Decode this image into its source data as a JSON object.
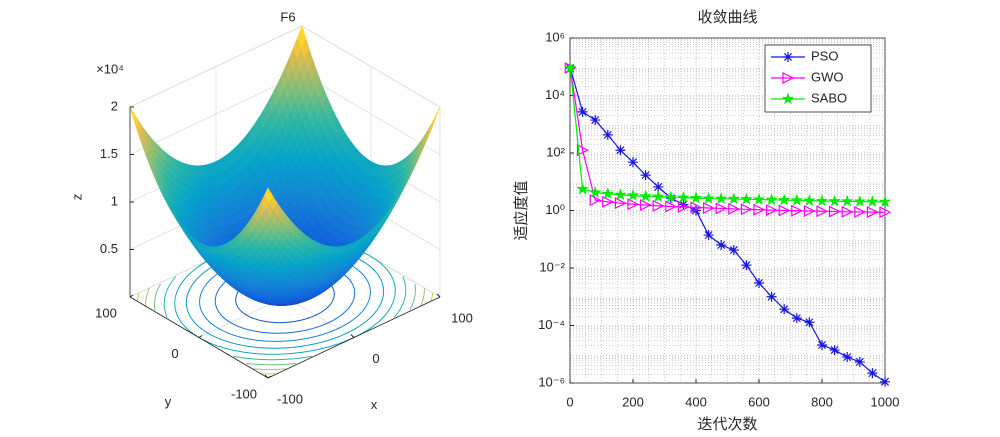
{
  "chart_data": [
    {
      "type": "surface",
      "title": "F6",
      "xlabel": "x",
      "ylabel": "y",
      "zlabel": "z",
      "xlim": [
        -100,
        100
      ],
      "ylim": [
        -100,
        100
      ],
      "zlim": [
        0,
        20000
      ],
      "xticks": [
        -100,
        0,
        100
      ],
      "yticks": [
        -100,
        0,
        100
      ],
      "zticks": [
        {
          "value": 5000,
          "label": "0.5"
        },
        {
          "value": 10000,
          "label": "1"
        },
        {
          "value": 15000,
          "label": "1.5"
        },
        {
          "value": 20000,
          "label": "2"
        }
      ],
      "z_multiplier": "×10⁴",
      "grid": true
    },
    {
      "type": "line",
      "title": "收敛曲线",
      "xlabel": "迭代次数",
      "ylabel": "适应度值",
      "x": [
        1,
        40,
        80,
        120,
        160,
        200,
        240,
        280,
        320,
        360,
        400,
        440,
        480,
        520,
        560,
        600,
        640,
        680,
        720,
        760,
        800,
        840,
        880,
        920,
        960,
        1000
      ],
      "series": [
        {
          "name": "PSO",
          "color": "#1414e6",
          "marker": "asterisk",
          "values": [
            90000,
            2700,
            1400,
            430,
            125,
            48,
            17,
            6.6,
            2.7,
            1.6,
            1.0,
            0.14,
            0.063,
            0.042,
            0.0126,
            0.003,
            0.001,
            0.00037,
            0.00018,
            0.00013,
            2.1e-05,
            1.4e-05,
            8e-06,
            5.4e-06,
            2.2e-06,
            1.1e-06
          ]
        },
        {
          "name": "GWO",
          "color": "#ff00ff",
          "marker": "triangle-right",
          "values": [
            90000,
            126,
            2.3,
            2.0,
            1.8,
            1.65,
            1.55,
            1.45,
            1.38,
            1.32,
            1.27,
            1.22,
            1.18,
            1.14,
            1.1,
            1.06,
            1.03,
            1.0,
            0.98,
            0.96,
            0.94,
            0.92,
            0.9,
            0.89,
            0.88,
            0.87
          ]
        },
        {
          "name": "SABO",
          "color": "#00ee00",
          "marker": "pentagram",
          "values": [
            90000,
            5.5,
            4.2,
            3.8,
            3.5,
            3.3,
            3.1,
            3.0,
            2.9,
            2.8,
            2.7,
            2.6,
            2.55,
            2.5,
            2.45,
            2.4,
            2.35,
            2.3,
            2.25,
            2.2,
            2.15,
            2.1,
            2.08,
            2.05,
            2.02,
            2.0
          ]
        }
      ],
      "xlim": [
        0,
        1000
      ],
      "xticks": [
        0,
        200,
        400,
        600,
        800,
        1000
      ],
      "ylim": [
        1e-06,
        1000000
      ],
      "log_y": true,
      "yticks": [
        {
          "value": 1e-06,
          "label": "10⁻⁶"
        },
        {
          "value": 0.0001,
          "label": "10⁻⁴"
        },
        {
          "value": 0.01,
          "label": "10⁻²"
        },
        {
          "value": 1,
          "label": "10⁰"
        },
        {
          "value": 100,
          "label": "10²"
        },
        {
          "value": 10000,
          "label": "10⁴"
        },
        {
          "value": 1000000,
          "label": "10⁶"
        }
      ],
      "grid": true,
      "minor_grid": true,
      "legend": "northeast"
    }
  ]
}
